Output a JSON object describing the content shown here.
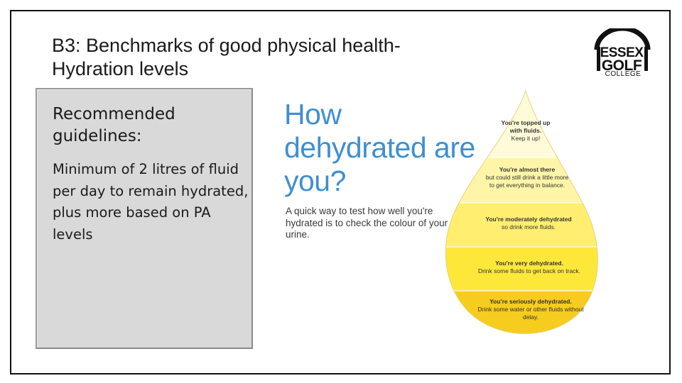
{
  "slide": {
    "title_line1": "B3: Benchmarks of good physical health-",
    "title_line2": "Hydration levels"
  },
  "logo": {
    "line1": "ESSEX",
    "line2": "GOLF",
    "line3": "COLLEGE"
  },
  "guidelines": {
    "heading": "Recommended guidelines:",
    "body": "Minimum of 2 litres of fluid per day to remain hydrated, plus more based on PA levels"
  },
  "infographic": {
    "title": "How dehydrated are you?",
    "subtitle": "A quick way to test how well you're hydrated is to check the colour of your urine.",
    "levels": [
      {
        "heading": "You're topped up with fluids.",
        "detail": "Keep it up!",
        "color": "#fffbd8"
      },
      {
        "heading": "You're almost there",
        "detail": "but could still drink a little more to get everything in balance.",
        "color": "#fff5a8"
      },
      {
        "heading": "You're moderately dehydrated",
        "detail": "so drink more fluids.",
        "color": "#ffee70"
      },
      {
        "heading": "You're very dehydrated.",
        "detail": "Drink some fluids to get back on track.",
        "color": "#fde83a"
      },
      {
        "heading": "You're seriously dehydrated.",
        "detail": "Drink some water or other fluids without delay.",
        "color": "#f6cc1e"
      }
    ]
  }
}
